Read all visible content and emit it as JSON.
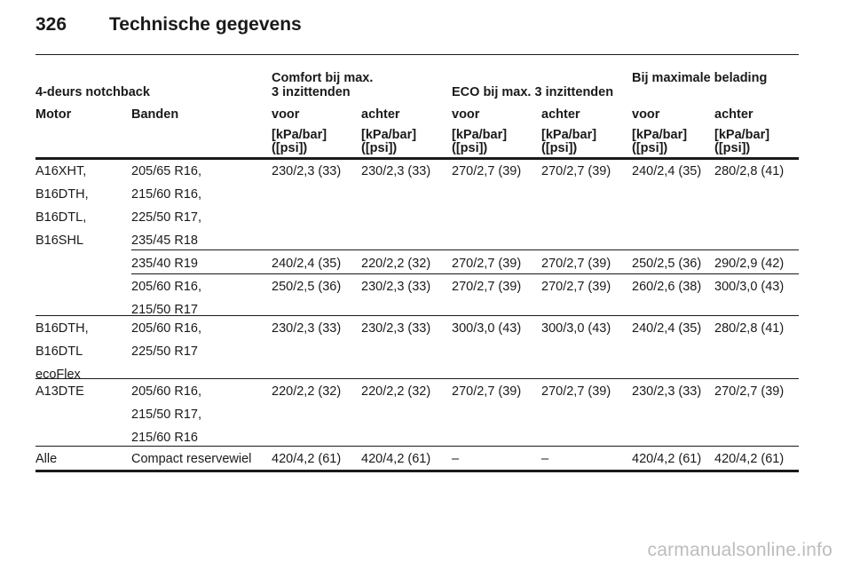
{
  "header": {
    "page_number": "326",
    "title": "Technische gegevens"
  },
  "table": {
    "body_style": "4-deurs notchback",
    "group_comfort_line1": "Comfort bij max.",
    "group_comfort_line2": "3 inzittenden",
    "group_eco": "ECO bij max. 3 inzittenden",
    "group_max": "Bij maximale belading",
    "col_motor": "Motor",
    "col_banden": "Banden",
    "col_voor": "voor",
    "col_achter": "achter",
    "unit_line1": "[kPa/bar]",
    "unit_line2": "([psi])",
    "rows": [
      {
        "motor": [
          "A16XHT,",
          "B16DTH,",
          "B16DTL,",
          "B16SHL"
        ],
        "tires": [
          "205/65 R16,",
          "215/60 R16,",
          "225/50 R17,",
          "235/45 R18"
        ],
        "values": [
          "230/2,3 (33)",
          "230/2,3 (33)",
          "270/2,7 (39)",
          "270/2,7 (39)",
          "240/2,4 (35)",
          "280/2,8 (41)"
        ]
      },
      {
        "motor": [],
        "tires": [
          "235/40 R19"
        ],
        "values": [
          "240/2,4 (35)",
          "220/2,2 (32)",
          "270/2,7 (39)",
          "270/2,7 (39)",
          "250/2,5 (36)",
          "290/2,9 (42)"
        ]
      },
      {
        "motor": [],
        "tires": [
          "205/60 R16,",
          "215/50 R17"
        ],
        "values": [
          "250/2,5 (36)",
          "230/2,3 (33)",
          "270/2,7 (39)",
          "270/2,7 (39)",
          "260/2,6 (38)",
          "300/3,0 (43)"
        ]
      },
      {
        "motor": [
          "B16DTH,",
          "B16DTL",
          "ecoFlex"
        ],
        "tires": [
          "205/60 R16,",
          "225/50 R17"
        ],
        "values": [
          "230/2,3 (33)",
          "230/2,3 (33)",
          "300/3,0 (43)",
          "300/3,0 (43)",
          "240/2,4 (35)",
          "280/2,8 (41)"
        ]
      },
      {
        "motor": [
          "A13DTE"
        ],
        "tires": [
          "205/60 R16,",
          "215/50 R17,",
          "215/60 R16"
        ],
        "values": [
          "220/2,2 (32)",
          "220/2,2 (32)",
          "270/2,7 (39)",
          "270/2,7 (39)",
          "230/2,3 (33)",
          "270/2,7 (39)"
        ]
      },
      {
        "motor": [
          "Alle"
        ],
        "tires": [
          "Compact reservewiel"
        ],
        "values": [
          "420/4,2 (61)",
          "420/4,2 (61)",
          "–",
          "–",
          "420/4,2 (61)",
          "420/4,2 (61)"
        ]
      }
    ]
  },
  "watermark": "carmanualsonline.info"
}
